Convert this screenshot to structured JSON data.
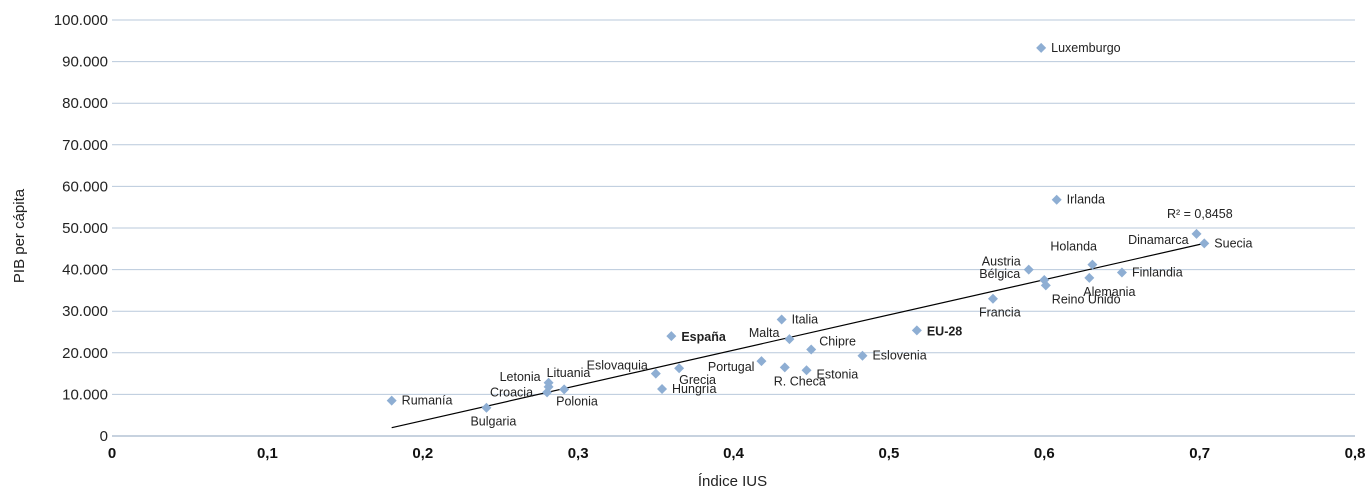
{
  "chart_data": {
    "type": "scatter",
    "xlabel": "Índice IUS",
    "ylabel": "PIB per cápita",
    "xlim": [
      0,
      0.8
    ],
    "ylim": [
      0,
      100000
    ],
    "x_ticks": [
      0,
      0.1,
      0.2,
      0.3,
      0.4,
      0.5,
      0.6,
      0.7,
      0.8
    ],
    "x_tick_labels": [
      "0",
      "0,1",
      "0,2",
      "0,3",
      "0,4",
      "0,5",
      "0,6",
      "0,7",
      "0,8"
    ],
    "y_ticks": [
      0,
      10000,
      20000,
      30000,
      40000,
      50000,
      60000,
      70000,
      80000,
      90000,
      100000
    ],
    "y_tick_labels": [
      "0",
      "10.000",
      "20.000",
      "30.000",
      "40.000",
      "50.000",
      "60.000",
      "70.000",
      "80.000",
      "90.000",
      "100.000"
    ],
    "grid": "horizontal",
    "marker_color": "#8eaed3",
    "trendline": {
      "x": [
        0.18,
        0.703
      ],
      "y": [
        2000,
        46300
      ],
      "label": "R² = 0,8458",
      "color": "#000000"
    },
    "points": [
      {
        "label": "Rumanía",
        "x": 0.18,
        "y": 8500
      },
      {
        "label": "Bulgaria",
        "x": 0.241,
        "y": 6800
      },
      {
        "label": "Letonia",
        "x": 0.281,
        "y": 12800
      },
      {
        "label": "Lituania",
        "x": 0.281,
        "y": 11800
      },
      {
        "label": "Croacia",
        "x": 0.28,
        "y": 10500
      },
      {
        "label": "Polonia",
        "x": 0.291,
        "y": 11200
      },
      {
        "label": "Eslovaquia",
        "x": 0.35,
        "y": 15000
      },
      {
        "label": "Hungría",
        "x": 0.354,
        "y": 11300
      },
      {
        "label": "España",
        "x": 0.36,
        "y": 24000,
        "bold": true
      },
      {
        "label": "Grecia",
        "x": 0.365,
        "y": 16300
      },
      {
        "label": "Portugal",
        "x": 0.418,
        "y": 18000
      },
      {
        "label": "R. Checa",
        "x": 0.433,
        "y": 16500
      },
      {
        "label": "Italia",
        "x": 0.431,
        "y": 28000
      },
      {
        "label": "Malta",
        "x": 0.436,
        "y": 23300
      },
      {
        "label": "Estonia",
        "x": 0.447,
        "y": 15800
      },
      {
        "label": "Chipre",
        "x": 0.45,
        "y": 20800
      },
      {
        "label": "Eslovenia",
        "x": 0.483,
        "y": 19300
      },
      {
        "label": "EU-28",
        "x": 0.518,
        "y": 25400,
        "bold": true
      },
      {
        "label": "Francia",
        "x": 0.567,
        "y": 33000
      },
      {
        "label": "Austria",
        "x": 0.59,
        "y": 40000
      },
      {
        "label": "Bélgica",
        "x": 0.6,
        "y": 37500
      },
      {
        "label": "Reino Unido",
        "x": 0.601,
        "y": 36200
      },
      {
        "label": "Luxemburgo",
        "x": 0.598,
        "y": 93300
      },
      {
        "label": "Irlanda",
        "x": 0.608,
        "y": 56800
      },
      {
        "label": "Holanda",
        "x": 0.631,
        "y": 41200
      },
      {
        "label": "Alemania",
        "x": 0.629,
        "y": 38000
      },
      {
        "label": "Finlandia",
        "x": 0.65,
        "y": 39300
      },
      {
        "label": "Dinamarca",
        "x": 0.698,
        "y": 48600
      },
      {
        "label": "Suecia",
        "x": 0.703,
        "y": 46300
      }
    ]
  }
}
